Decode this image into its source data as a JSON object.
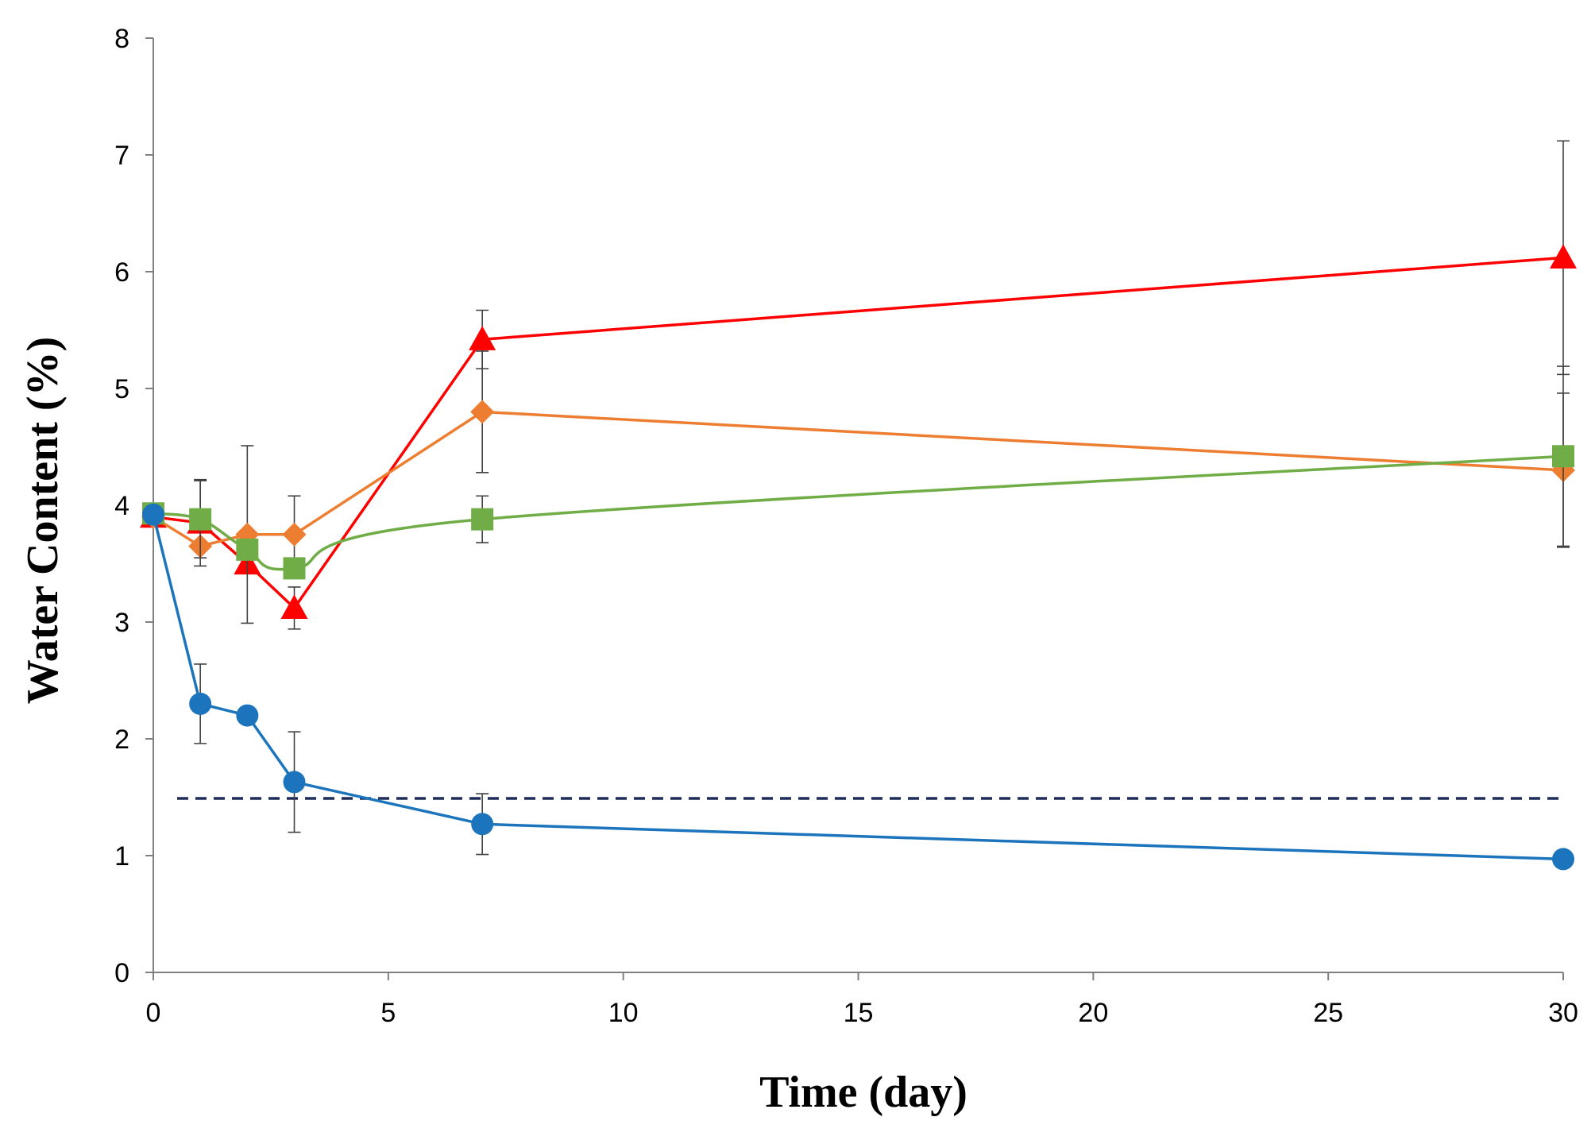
{
  "chart_data": {
    "type": "line",
    "title": "",
    "xlabel": "Time (day)",
    "ylabel": "Water Content (%)",
    "xlim": [
      0,
      30
    ],
    "ylim": [
      0,
      8
    ],
    "xticks": [
      0,
      5,
      10,
      15,
      20,
      25,
      30
    ],
    "yticks": [
      0,
      1,
      2,
      3,
      4,
      5,
      6,
      7,
      8
    ],
    "grid": false,
    "legend": null,
    "reference_line": {
      "y": 1.49,
      "style": "dashed",
      "color": "#1f2d5a"
    },
    "series": [
      {
        "name": "triangle-red",
        "color": "#ff0000",
        "marker": "triangle",
        "smooth": false,
        "x": [
          0,
          1,
          2,
          3,
          7,
          30
        ],
        "values": [
          3.9,
          3.85,
          3.5,
          3.12,
          5.42,
          6.12
        ],
        "errors": [
          0,
          0.37,
          0,
          0.18,
          0.25,
          1.0
        ]
      },
      {
        "name": "diamond-orange",
        "color": "#ed7d31",
        "marker": "diamond",
        "smooth": false,
        "x": [
          0,
          1,
          2,
          3,
          7,
          30
        ],
        "values": [
          3.9,
          3.65,
          3.75,
          3.75,
          4.8,
          4.3
        ],
        "errors": [
          0,
          0,
          0.76,
          0.33,
          0.52,
          0.66
        ]
      },
      {
        "name": "square-green",
        "color": "#70ad47",
        "marker": "square",
        "smooth": true,
        "x": [
          0,
          1,
          2,
          3,
          7,
          30
        ],
        "values": [
          3.93,
          3.88,
          3.62,
          3.46,
          3.88,
          4.42
        ],
        "errors": [
          0,
          0.33,
          0,
          0,
          0.2,
          0.77
        ]
      },
      {
        "name": "circle-blue",
        "color": "#1c75bc",
        "marker": "circle",
        "smooth": false,
        "x": [
          0,
          1,
          2,
          3,
          7,
          30
        ],
        "values": [
          3.92,
          2.3,
          2.2,
          1.63,
          1.27,
          0.97
        ],
        "errors": [
          0,
          0.34,
          0.06,
          0.43,
          0.26,
          0
        ]
      }
    ]
  }
}
